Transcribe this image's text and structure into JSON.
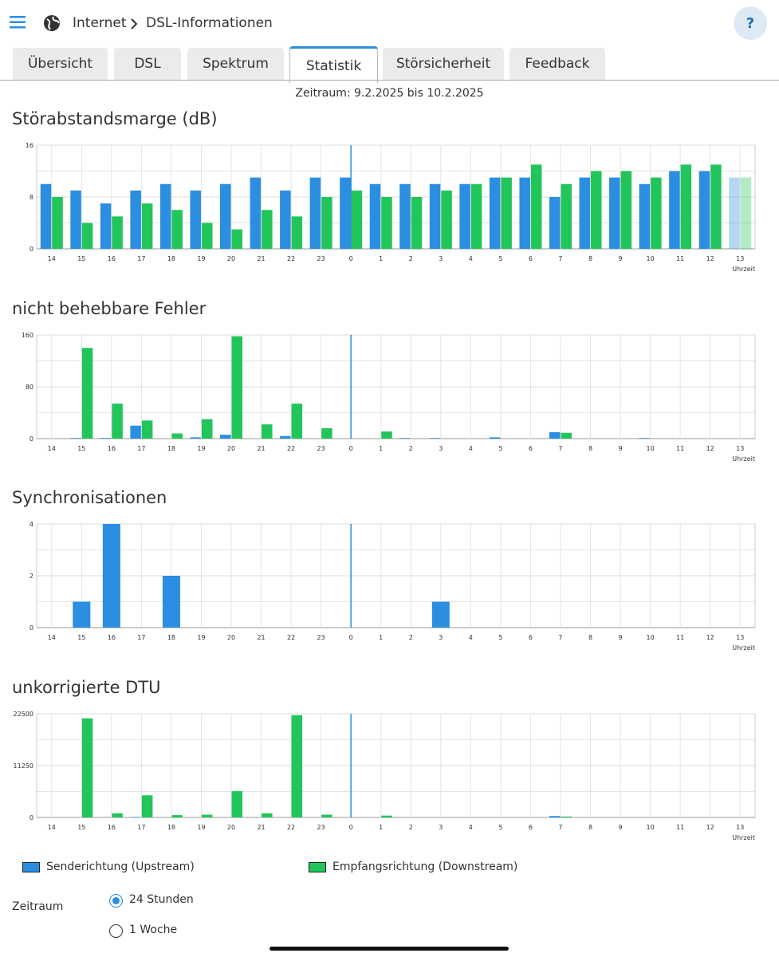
{
  "header": {
    "section": "Internet",
    "page": "DSL-Informationen",
    "help": "?"
  },
  "tabs": [
    "Übersicht",
    "DSL",
    "Spektrum",
    "Statistik",
    "Störsicherheit",
    "Feedback"
  ],
  "active_tab": 3,
  "period": "Zeitraum: 9.2.2025 bis 10.2.2025",
  "legend": [
    {
      "name": "Senderichtung (Upstream)",
      "color": "#2b8ee0"
    },
    {
      "name": "Empfangsrichtung (Downstream)",
      "color": "#22c55a"
    }
  ],
  "chart_data": [
    {
      "type": "bar",
      "title": "Störabstandsmarge (dB)",
      "x_label": "Uhrzeit",
      "categories": [
        "14",
        "15",
        "16",
        "17",
        "18",
        "19",
        "20",
        "21",
        "22",
        "23",
        "0",
        "1",
        "2",
        "3",
        "4",
        "5",
        "6",
        "7",
        "8",
        "9",
        "10",
        "11",
        "12",
        "13"
      ],
      "ylim": [
        0,
        16
      ],
      "yticks": [
        0,
        8,
        16
      ],
      "grid": true,
      "series": [
        {
          "color": "#2b8ee0",
          "values": [
            10,
            9,
            7,
            9,
            10,
            9,
            10,
            11,
            9,
            11,
            11,
            10,
            10,
            10,
            10,
            11,
            11,
            8,
            11,
            11,
            10,
            12,
            12,
            11
          ]
        },
        {
          "color": "#22c55a",
          "values": [
            8,
            4,
            5,
            7,
            6,
            4,
            3,
            6,
            5,
            8,
            9,
            8,
            8,
            9,
            10,
            11,
            13,
            10,
            12,
            12,
            11,
            13,
            13,
            11
          ]
        }
      ]
    },
    {
      "type": "bar",
      "title": "nicht behebbare Fehler",
      "x_label": "Uhrzeit",
      "categories": [
        "14",
        "15",
        "16",
        "17",
        "18",
        "19",
        "20",
        "21",
        "22",
        "23",
        "0",
        "1",
        "2",
        "3",
        "4",
        "5",
        "6",
        "7",
        "8",
        "9",
        "10",
        "11",
        "12",
        "13"
      ],
      "ylim": [
        0,
        160
      ],
      "yticks": [
        0,
        80,
        160
      ],
      "grid": true,
      "series": [
        {
          "color": "#2b8ee0",
          "values": [
            0,
            1,
            1,
            20,
            0,
            2,
            6,
            0,
            4,
            0,
            0,
            0,
            1,
            1,
            0,
            2,
            0,
            10,
            0,
            0,
            1,
            0,
            0,
            0
          ]
        },
        {
          "color": "#22c55a",
          "values": [
            0,
            140,
            54,
            28,
            8,
            30,
            158,
            22,
            54,
            16,
            0,
            11,
            0,
            0,
            0,
            0,
            0,
            9,
            0,
            0,
            0,
            0,
            0,
            0
          ]
        }
      ]
    },
    {
      "type": "bar",
      "title": "Synchronisationen",
      "x_label": "Uhrzeit",
      "categories": [
        "14",
        "15",
        "16",
        "17",
        "18",
        "19",
        "20",
        "21",
        "22",
        "23",
        "0",
        "1",
        "2",
        "3",
        "4",
        "5",
        "6",
        "7",
        "8",
        "9",
        "10",
        "11",
        "12",
        "13"
      ],
      "ylim": [
        0,
        4
      ],
      "yticks": [
        0,
        2,
        4
      ],
      "grid": true,
      "series": [
        {
          "color": "#2b8ee0",
          "values": [
            0,
            1,
            4,
            0,
            2,
            0,
            0,
            0,
            0,
            0,
            0,
            0,
            0,
            1,
            0,
            0,
            0,
            0,
            0,
            0,
            0,
            0,
            0,
            0
          ]
        }
      ]
    },
    {
      "type": "bar",
      "title": "unkorrigierte DTU",
      "x_label": "Uhrzeit",
      "categories": [
        "14",
        "15",
        "16",
        "17",
        "18",
        "19",
        "20",
        "21",
        "22",
        "23",
        "0",
        "1",
        "2",
        "3",
        "4",
        "5",
        "6",
        "7",
        "8",
        "9",
        "10",
        "11",
        "12",
        "13"
      ],
      "ylim": [
        0,
        22500
      ],
      "yticks": [
        0,
        11250,
        22500
      ],
      "grid": true,
      "series": [
        {
          "color": "#2b8ee0",
          "values": [
            0,
            0,
            0,
            100,
            0,
            0,
            0,
            0,
            0,
            0,
            0,
            0,
            0,
            0,
            0,
            0,
            0,
            300,
            0,
            0,
            0,
            0,
            0,
            0
          ]
        },
        {
          "color": "#22c55a",
          "values": [
            0,
            21500,
            900,
            4800,
            500,
            600,
            5700,
            900,
            22200,
            600,
            0,
            400,
            0,
            0,
            0,
            0,
            0,
            200,
            0,
            0,
            0,
            0,
            0,
            0
          ]
        }
      ]
    }
  ],
  "period_selector": {
    "label": "Zeitraum",
    "options": [
      "24 Stunden",
      "1 Woche"
    ],
    "selected": 0
  }
}
